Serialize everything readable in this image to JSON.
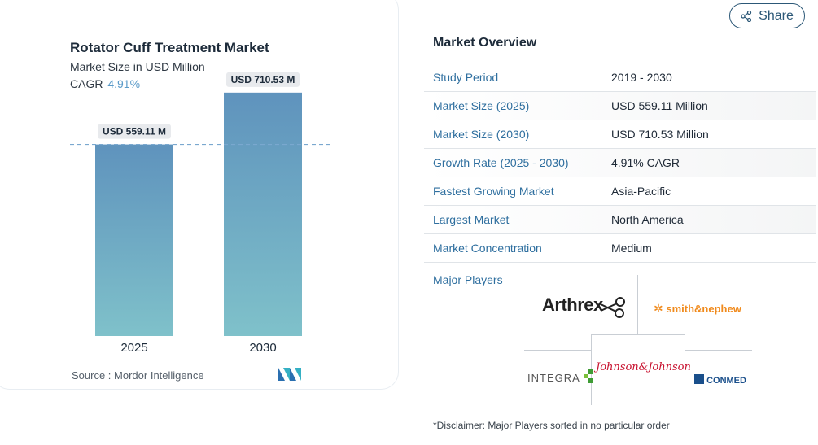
{
  "chart_data": {
    "type": "bar",
    "title": "Rotator Cuff Treatment Market",
    "subtitle": "Market Size in USD Million",
    "cagr_label": "CAGR",
    "cagr_value": "4.91%",
    "categories": [
      "2025",
      "2030"
    ],
    "values": [
      559.11,
      710.53
    ],
    "data_labels": [
      "USD 559.11 M",
      "USD 710.53 M"
    ],
    "bar_colors": {
      "top": "#5f93bd",
      "bottom": "#7fc1ca"
    },
    "reference_line": 559.11,
    "ylim": [
      0,
      760
    ]
  },
  "source": {
    "label": "Source :",
    "text": "Mordor Intelligence"
  },
  "share": {
    "label": "Share",
    "icon": "share-icon"
  },
  "overview": {
    "title": "Market Overview",
    "rows": [
      {
        "k": "Study Period",
        "v": "2019 - 2030"
      },
      {
        "k": "Market Size (2025)",
        "v": "USD 559.11 Million"
      },
      {
        "k": "Market Size (2030)",
        "v": "USD 710.53 Million"
      },
      {
        "k": "Growth Rate (2025 - 2030)",
        "v": "4.91% CAGR"
      },
      {
        "k": "Fastest Growing Market",
        "v": "Asia-Pacific"
      },
      {
        "k": "Largest Market",
        "v": "North America"
      },
      {
        "k": "Market Concentration",
        "v": "Medium"
      }
    ]
  },
  "players": {
    "label": "Major Players",
    "names": [
      "Arthrex",
      "smith&nephew",
      "INTEGRA",
      "Johnson&Johnson",
      "CONMED"
    ]
  },
  "disclaimer": "*Disclaimer: Major Players sorted in no particular order"
}
